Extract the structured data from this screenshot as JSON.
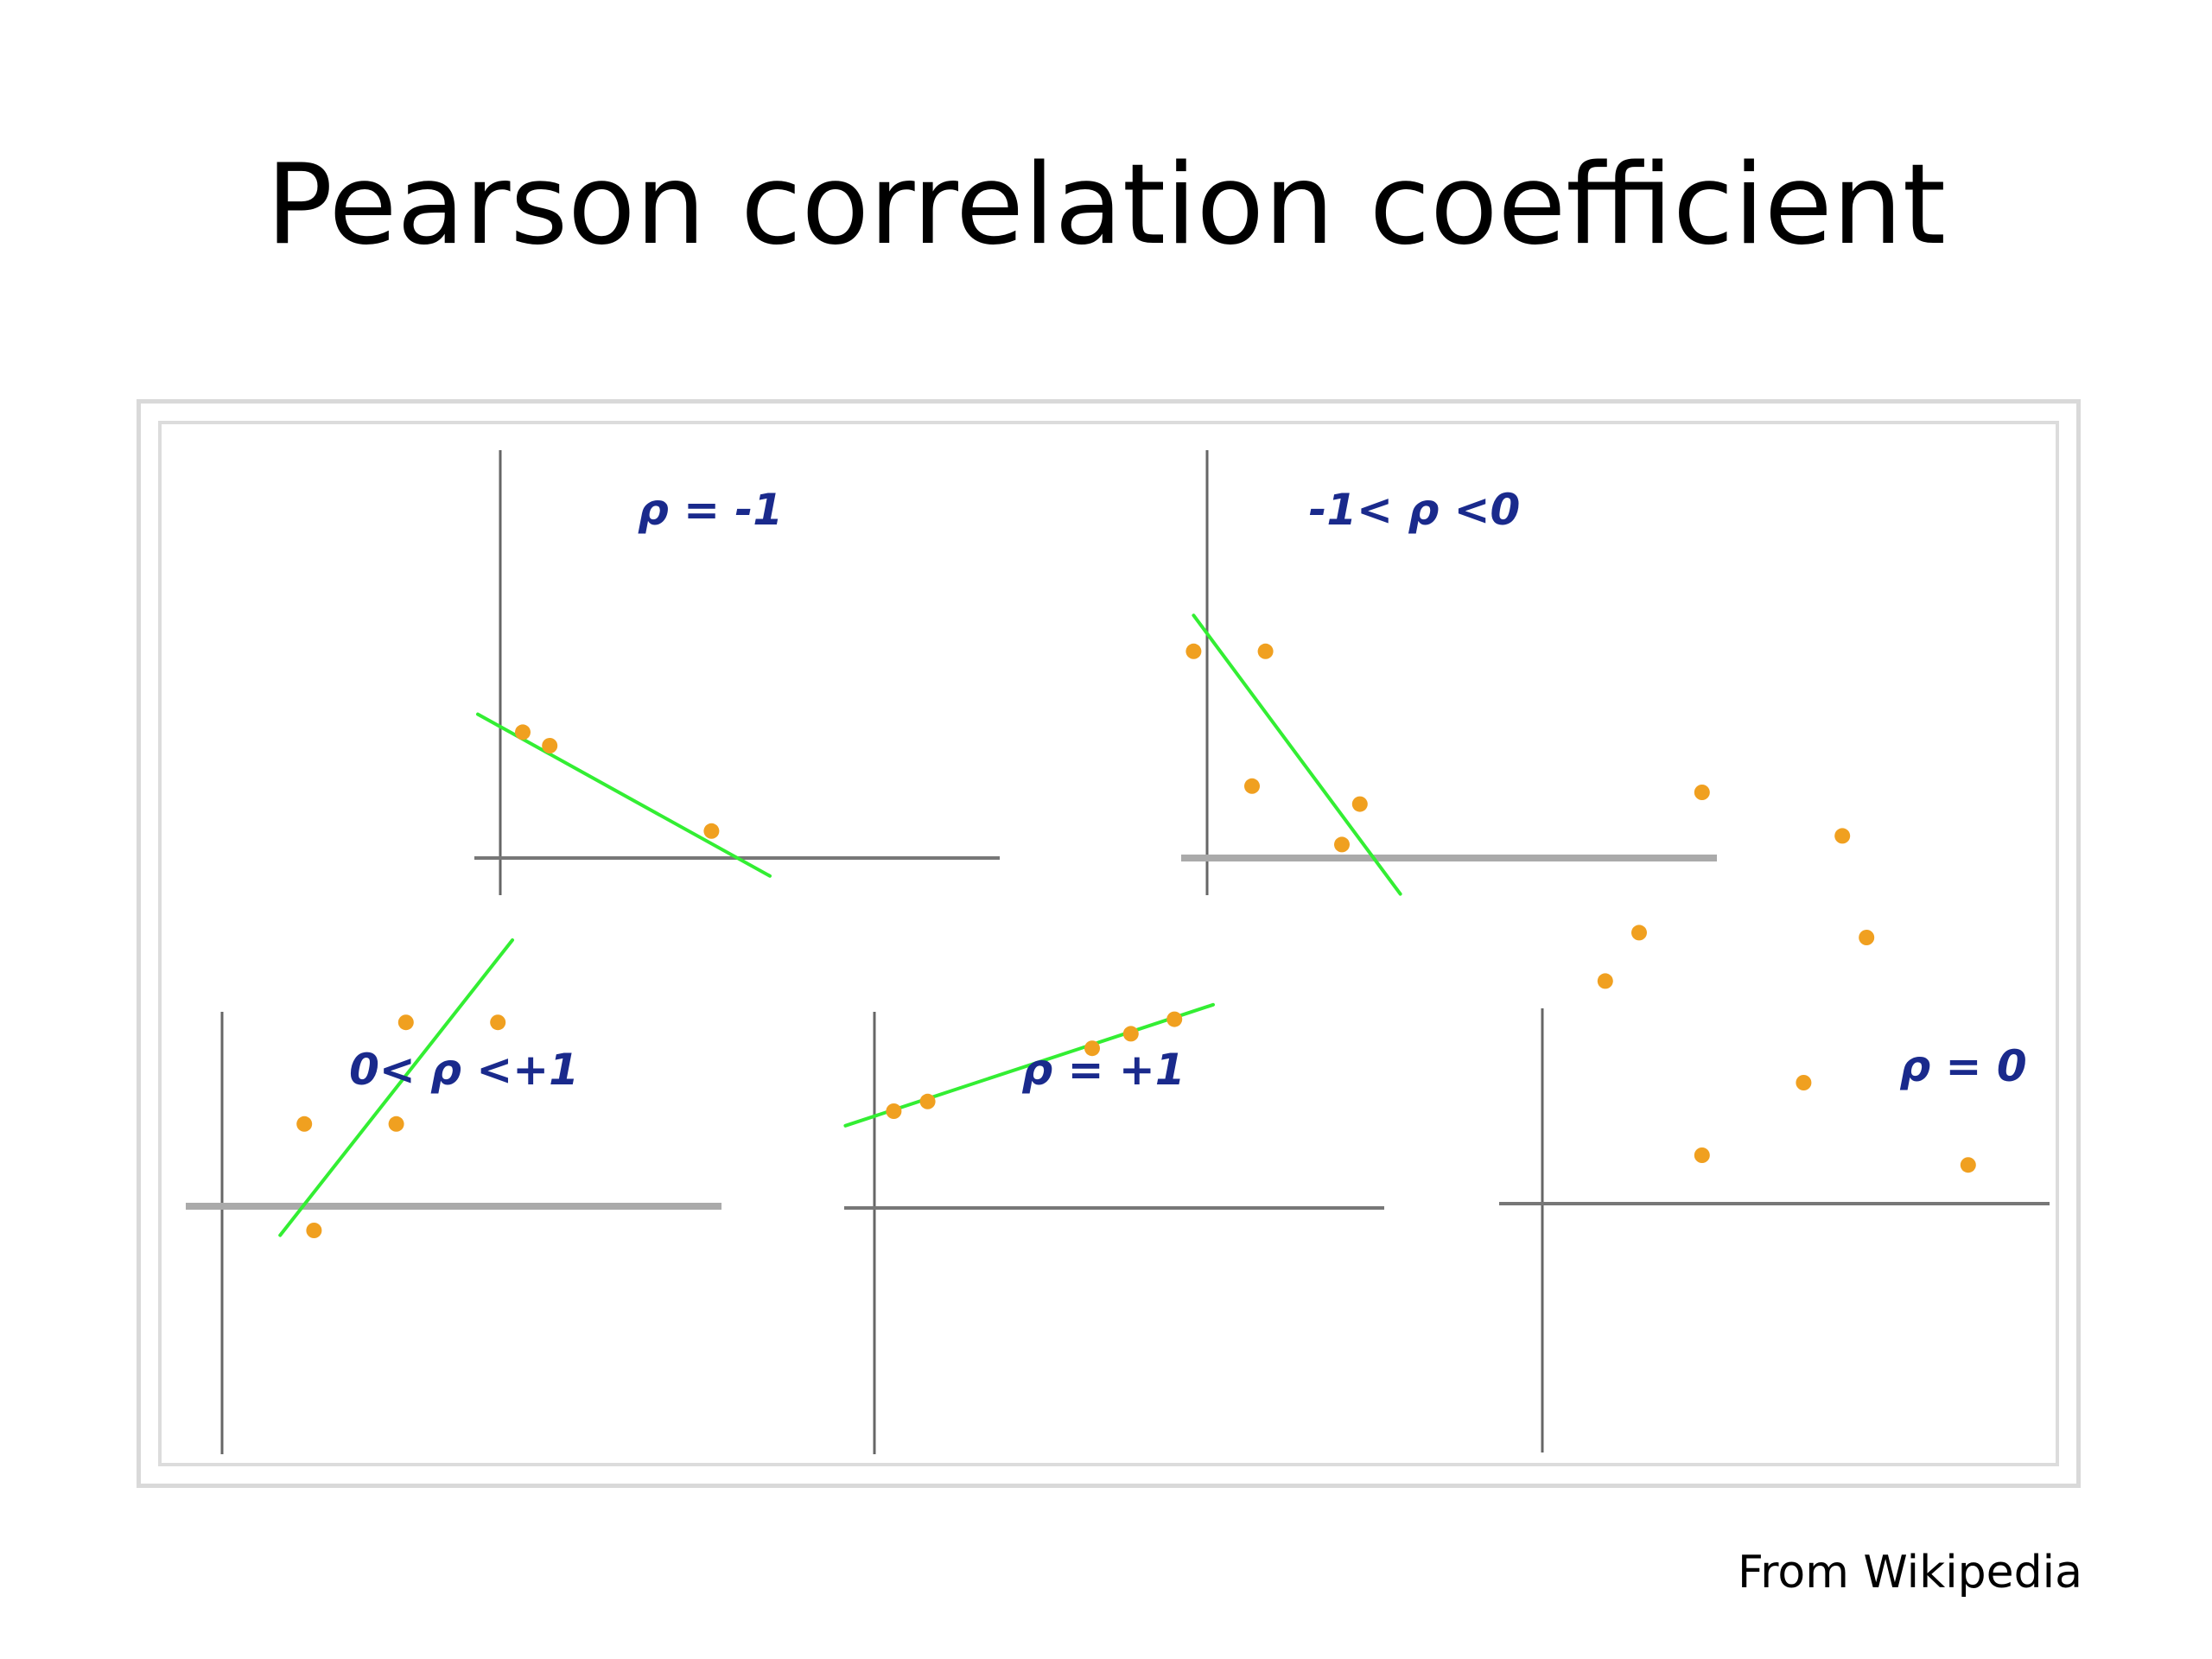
{
  "slide": {
    "title": "Pearson correlation coefficient",
    "caption": "From Wikipedia"
  },
  "colors": {
    "axis": "#777777",
    "axis_light": "#aaaaaa",
    "fit_line": "#33ee33",
    "point": "#f0a020",
    "label": "#1a2a8c"
  },
  "panels": [
    {
      "id": "rho-minus-1",
      "label": "ρ = -1",
      "points": [
        [
          0.5,
          2.8
        ],
        [
          1.1,
          2.5
        ],
        [
          4.7,
          0.6
        ]
      ],
      "fit_line": [
        [
          -0.5,
          3.2
        ],
        [
          6.0,
          -0.4
        ]
      ]
    },
    {
      "id": "rho-between-minus-1-and-0",
      "label": "-1< ρ <0",
      "points": [
        [
          -0.3,
          4.6
        ],
        [
          1.3,
          4.6
        ],
        [
          1.0,
          1.6
        ],
        [
          3.4,
          1.2
        ],
        [
          3.0,
          0.3
        ]
      ],
      "fit_line": [
        [
          -0.3,
          5.4
        ],
        [
          4.3,
          -0.8
        ]
      ]
    },
    {
      "id": "rho-between-0-and-plus-1",
      "label": "0< ρ <+1",
      "points": [
        [
          1.7,
          1.7
        ],
        [
          3.8,
          3.8
        ],
        [
          3.6,
          1.7
        ],
        [
          5.7,
          3.8
        ],
        [
          1.9,
          -0.5
        ]
      ],
      "fit_line": [
        [
          1.2,
          -0.6
        ],
        [
          6.0,
          5.5
        ]
      ]
    },
    {
      "id": "rho-plus-1",
      "label": "ρ = +1",
      "points": [
        [
          0.4,
          2.0
        ],
        [
          1.1,
          2.2
        ],
        [
          4.5,
          3.3
        ],
        [
          5.3,
          3.6
        ],
        [
          6.2,
          3.9
        ]
      ],
      "fit_line": [
        [
          -0.6,
          1.7
        ],
        [
          7.0,
          4.2
        ]
      ]
    },
    {
      "id": "rho-0",
      "label": "ρ = 0",
      "points": [
        [
          3.3,
          8.5
        ],
        [
          6.2,
          7.6
        ],
        [
          2.0,
          5.6
        ],
        [
          1.3,
          4.6
        ],
        [
          6.7,
          5.5
        ],
        [
          5.4,
          2.5
        ],
        [
          3.3,
          1.0
        ],
        [
          8.8,
          0.8
        ]
      ],
      "fit_line": null
    }
  ]
}
